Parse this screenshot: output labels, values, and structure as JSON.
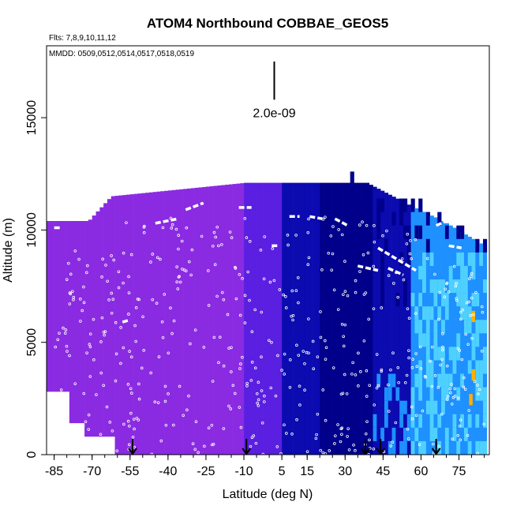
{
  "chart_data": {
    "type": "heatmap",
    "title": "ATOM4 Northbound COBBAE_GEOS5",
    "flights_note": "Flts: 7,8,9,10,11,12",
    "dates_note": "MMDD: 0509,0512,0514,0517,0518,0519",
    "xlabel": "Latitude (deg N)",
    "ylabel": "Altitude (m)",
    "xlim": [
      -88,
      87
    ],
    "ylim": [
      0,
      18200
    ],
    "x_tick_labels": [
      "-85",
      "-70",
      "-55",
      "-40",
      "-25",
      "-10",
      "5",
      "15",
      "30",
      "45",
      "60",
      "75"
    ],
    "x_tick_values": [
      -85,
      -70,
      -55,
      -40,
      -25,
      -10,
      5,
      15,
      30,
      45,
      60,
      75
    ],
    "y_ticks": [
      0,
      5000,
      10000,
      15000
    ],
    "y_tick_labels": [
      "0",
      "5000",
      "10000",
      "15000"
    ],
    "scale_bar": {
      "label": "2.0e-09",
      "latitude": 2,
      "altitude_bottom": 15800,
      "altitude_top": 17500
    },
    "arrow_latitudes": [
      -54,
      -9,
      38,
      44,
      66
    ],
    "colors": {
      "background_field": "#8a2be2",
      "mid_field": "#5a1fe0",
      "deep_blue": "#0b0bb0",
      "navy": "#00008b",
      "cyan": "#1e90ff",
      "light_cyan": "#4fd1ff",
      "hotspot": "#ffb000",
      "flight_track": "#ffffff"
    }
  }
}
